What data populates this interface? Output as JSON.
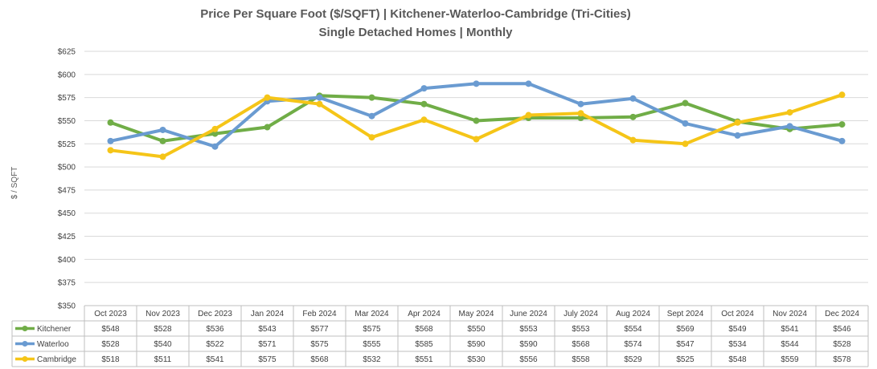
{
  "chart_data": {
    "type": "line",
    "title": "Price Per Square Foot ($/SQFT) | Kitchener-Waterloo-Cambridge (Tri-Cities)",
    "subtitle": "Single Detached Homes | Monthly",
    "ylabel": "$ / SQFT",
    "ylim": [
      350,
      625
    ],
    "yticks": [
      350,
      375,
      400,
      425,
      450,
      475,
      500,
      525,
      550,
      575,
      600,
      625
    ],
    "ytick_labels": [
      "$350",
      "$375",
      "$400",
      "$425",
      "$450",
      "$475",
      "$500",
      "$525",
      "$550",
      "$575",
      "$600",
      "$625"
    ],
    "categories": [
      "Oct 2023",
      "Nov 2023",
      "Dec 2023",
      "Jan 2024",
      "Feb 2024",
      "Mar 2024",
      "Apr 2024",
      "May 2024",
      "June 2024",
      "July 2024",
      "Aug 2024",
      "Sept 2024",
      "Oct 2024",
      "Nov 2024",
      "Dec 2024"
    ],
    "grid": true,
    "legend": "data-table",
    "series": [
      {
        "name": "Kitchener",
        "color": "#70AD47",
        "values": [
          548,
          528,
          536,
          543,
          577,
          575,
          568,
          550,
          553,
          553,
          554,
          569,
          549,
          541,
          546
        ],
        "labels": [
          "$548",
          "$528",
          "$536",
          "$543",
          "$577",
          "$575",
          "$568",
          "$550",
          "$553",
          "$553",
          "$554",
          "$569",
          "$549",
          "$541",
          "$546"
        ]
      },
      {
        "name": "Waterloo",
        "color": "#6A9BD1",
        "values": [
          528,
          540,
          522,
          571,
          575,
          555,
          585,
          590,
          590,
          568,
          574,
          547,
          534,
          544,
          528
        ],
        "labels": [
          "$528",
          "$540",
          "$522",
          "$571",
          "$575",
          "$555",
          "$585",
          "$590",
          "$590",
          "$568",
          "$574",
          "$547",
          "$534",
          "$544",
          "$528"
        ]
      },
      {
        "name": "Cambridge",
        "color": "#F5C518",
        "values": [
          518,
          511,
          541,
          575,
          568,
          532,
          551,
          530,
          556,
          558,
          529,
          525,
          548,
          559,
          578
        ],
        "labels": [
          "$518",
          "$511",
          "$541",
          "$575",
          "$568",
          "$532",
          "$551",
          "$530",
          "$556",
          "$558",
          "$529",
          "$525",
          "$548",
          "$559",
          "$578"
        ]
      }
    ]
  }
}
